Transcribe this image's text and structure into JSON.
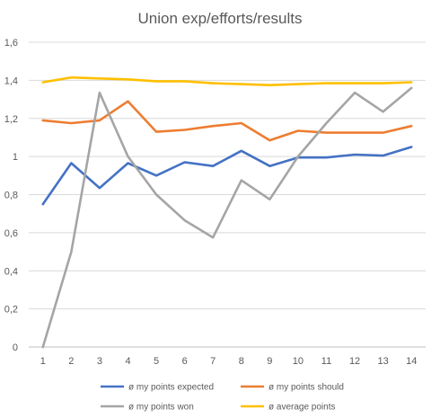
{
  "chart_data": {
    "type": "line",
    "title": "Union exp/efforts/results",
    "x": [
      1,
      2,
      3,
      4,
      5,
      6,
      7,
      8,
      9,
      10,
      11,
      12,
      13,
      14
    ],
    "x_tick_labels": [
      "1",
      "2",
      "3",
      "4",
      "5",
      "6",
      "7",
      "8",
      "9",
      "10",
      "11",
      "12",
      "13",
      "14"
    ],
    "y_tick_labels": [
      "0",
      "0,2",
      "0,4",
      "0,6",
      "0,8",
      "1",
      "1,2",
      "1,4",
      "1,6"
    ],
    "y_ticks": [
      0,
      0.2,
      0.4,
      0.6,
      0.8,
      1.0,
      1.2,
      1.4,
      1.6
    ],
    "ylim": [
      0,
      1.6
    ],
    "grid": "horizontal",
    "legend_position": "bottom",
    "series": [
      {
        "name": "ø my points expected",
        "color": "#4472c4",
        "values": [
          0.75,
          0.965,
          0.835,
          0.965,
          0.9,
          0.97,
          0.95,
          1.03,
          0.95,
          0.995,
          0.995,
          1.01,
          1.005,
          1.05
        ]
      },
      {
        "name": "ø my points should",
        "color": "#ed7d31",
        "values": [
          1.19,
          1.175,
          1.19,
          1.29,
          1.13,
          1.14,
          1.16,
          1.175,
          1.085,
          1.135,
          1.125,
          1.125,
          1.125,
          1.16
        ]
      },
      {
        "name": "ø my points won",
        "color": "#a5a5a5",
        "values": [
          0.0,
          0.5,
          1.335,
          1.0,
          0.8,
          0.665,
          0.575,
          0.875,
          0.775,
          1.0,
          1.175,
          1.335,
          1.235,
          1.36
        ]
      },
      {
        "name": "ø average points",
        "color": "#ffc000",
        "values": [
          1.39,
          1.415,
          1.41,
          1.405,
          1.395,
          1.395,
          1.385,
          1.38,
          1.375,
          1.38,
          1.385,
          1.385,
          1.385,
          1.39
        ]
      }
    ]
  }
}
